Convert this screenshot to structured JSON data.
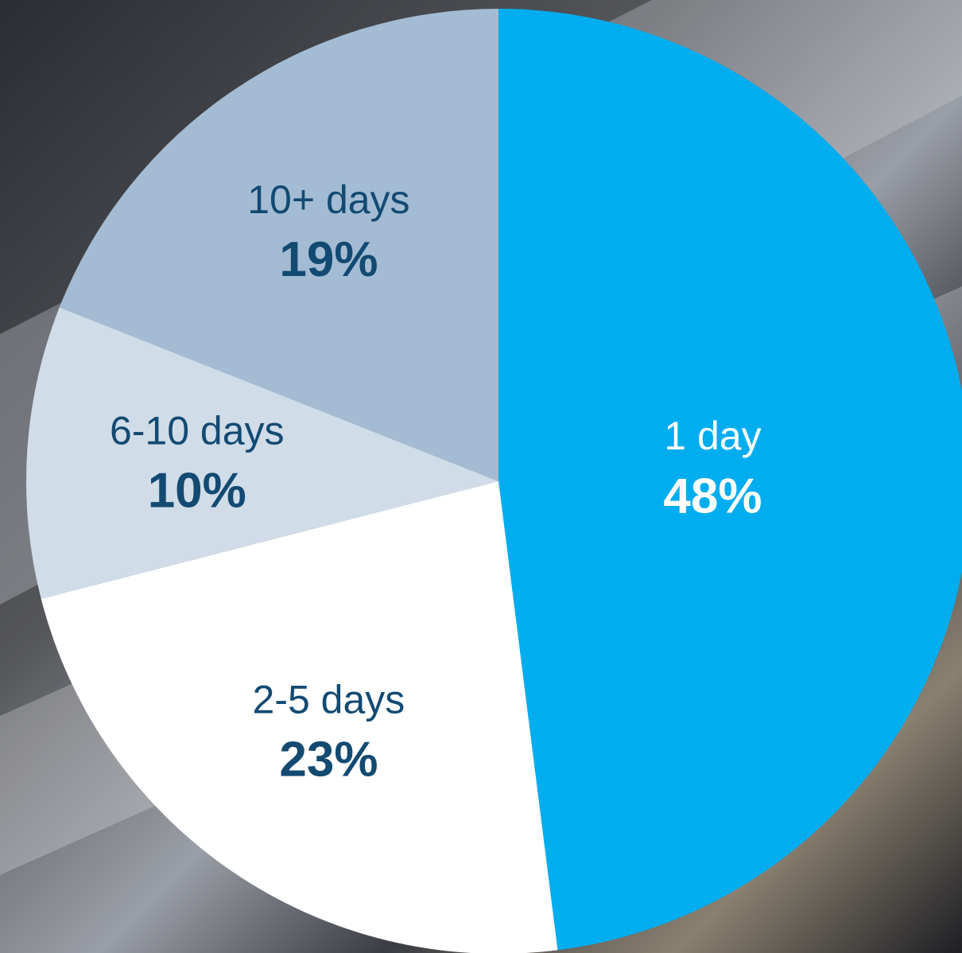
{
  "chart_data": {
    "type": "pie",
    "categories": [
      "1 day",
      "2-5 days",
      "6-10 days",
      "10+ days"
    ],
    "values": [
      48,
      23,
      10,
      19
    ],
    "value_labels": [
      "48%",
      "23%",
      "10%",
      "19%"
    ],
    "colors": [
      "#00adef",
      "#ffffff",
      "#d0dce8",
      "#a3bcd3"
    ],
    "label_colors": [
      "#ffffff",
      "#134a72",
      "#134a72",
      "#134a72"
    ]
  }
}
